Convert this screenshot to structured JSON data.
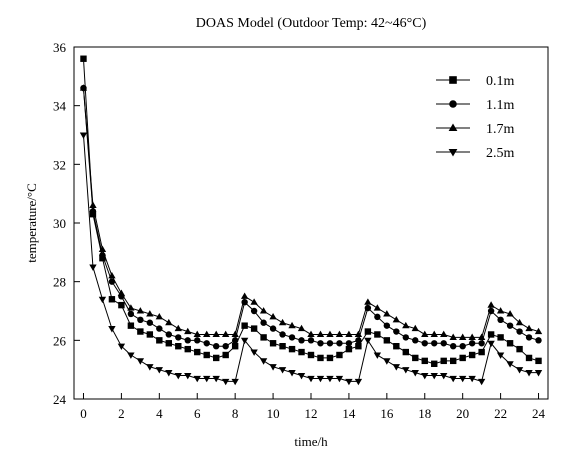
{
  "chart_data": {
    "type": "line",
    "title": "DOAS Model (Outdoor Temp: 42~46°C)",
    "xlabel": "time/h",
    "ylabel": "temperature/°C",
    "xlim": [
      -0.5,
      24.5
    ],
    "ylim": [
      24,
      36
    ],
    "xticks": [
      0,
      2,
      4,
      6,
      8,
      10,
      12,
      14,
      16,
      18,
      20,
      22,
      24
    ],
    "yticks": [
      24,
      26,
      28,
      30,
      32,
      34,
      36
    ],
    "grid": false,
    "legend_position": "top-right",
    "x": [
      0,
      0.5,
      1,
      1.5,
      2,
      2.5,
      3,
      3.5,
      4,
      4.5,
      5,
      5.5,
      6,
      6.5,
      7,
      7.5,
      8,
      8.5,
      9,
      9.5,
      10,
      10.5,
      11,
      11.5,
      12,
      12.5,
      13,
      13.5,
      14,
      14.5,
      15,
      15.5,
      16,
      16.5,
      17,
      17.5,
      18,
      18.5,
      19,
      19.5,
      20,
      20.5,
      21,
      21.5,
      22,
      22.5,
      23,
      23.5,
      24
    ],
    "series": [
      {
        "name": "0.1m",
        "marker": "square",
        "values": [
          35.6,
          30.3,
          28.8,
          27.4,
          27.2,
          26.5,
          26.3,
          26.2,
          26.0,
          25.9,
          25.8,
          25.7,
          25.6,
          25.5,
          25.4,
          25.5,
          25.8,
          26.5,
          26.4,
          26.1,
          25.9,
          25.8,
          25.7,
          25.6,
          25.5,
          25.4,
          25.4,
          25.5,
          25.7,
          25.8,
          26.3,
          26.2,
          26.0,
          25.8,
          25.6,
          25.4,
          25.3,
          25.2,
          25.3,
          25.3,
          25.4,
          25.5,
          25.6,
          26.2,
          26.1,
          25.9,
          25.7,
          25.4,
          25.3
        ]
      },
      {
        "name": "1.1m",
        "marker": "circle",
        "values": [
          34.6,
          30.4,
          28.9,
          28.0,
          27.5,
          26.9,
          26.7,
          26.6,
          26.4,
          26.2,
          26.1,
          26.0,
          26.0,
          25.9,
          25.8,
          25.8,
          26.0,
          27.3,
          27.0,
          26.6,
          26.4,
          26.2,
          26.1,
          26.0,
          26.0,
          25.9,
          25.9,
          25.9,
          25.9,
          26.0,
          27.1,
          26.8,
          26.5,
          26.3,
          26.1,
          26.0,
          25.9,
          25.9,
          25.9,
          25.8,
          25.8,
          25.9,
          25.9,
          27.0,
          26.7,
          26.5,
          26.3,
          26.1,
          26.0
        ]
      },
      {
        "name": "1.7m",
        "marker": "triangle-up",
        "values": [
          34.6,
          30.6,
          29.1,
          28.2,
          27.6,
          27.1,
          27.0,
          26.9,
          26.8,
          26.6,
          26.4,
          26.3,
          26.2,
          26.2,
          26.2,
          26.2,
          26.2,
          27.5,
          27.3,
          27.0,
          26.8,
          26.6,
          26.5,
          26.4,
          26.2,
          26.2,
          26.2,
          26.2,
          26.2,
          26.2,
          27.3,
          27.1,
          26.9,
          26.7,
          26.5,
          26.4,
          26.2,
          26.2,
          26.2,
          26.1,
          26.1,
          26.1,
          26.1,
          27.2,
          27.0,
          26.9,
          26.6,
          26.4,
          26.3
        ]
      },
      {
        "name": "2.5m",
        "marker": "triangle-down",
        "values": [
          33.0,
          28.5,
          27.4,
          26.4,
          25.8,
          25.5,
          25.3,
          25.1,
          25.0,
          24.9,
          24.8,
          24.8,
          24.7,
          24.7,
          24.7,
          24.6,
          24.6,
          26.0,
          25.6,
          25.3,
          25.1,
          25.0,
          24.9,
          24.8,
          24.7,
          24.7,
          24.7,
          24.7,
          24.6,
          24.6,
          26.0,
          25.5,
          25.3,
          25.1,
          25.0,
          24.9,
          24.8,
          24.8,
          24.8,
          24.7,
          24.7,
          24.7,
          24.6,
          25.9,
          25.5,
          25.2,
          25.0,
          24.9,
          24.9
        ]
      }
    ]
  }
}
